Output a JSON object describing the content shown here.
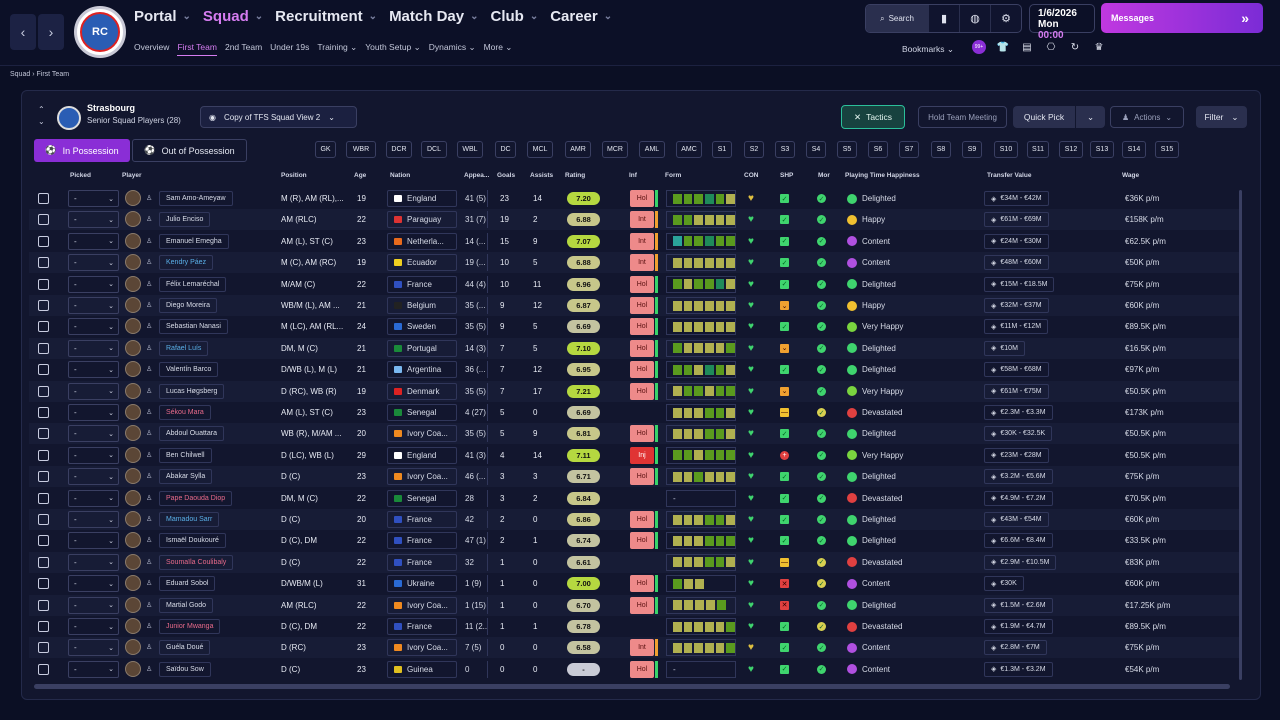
{
  "nav": {
    "items": [
      "Portal",
      "Squad",
      "Recruitment",
      "Match Day",
      "Club",
      "Career"
    ],
    "active": "Squad",
    "sub": [
      "Overview",
      "First Team",
      "2nd Team",
      "Under 19s",
      "Training",
      "Youth Setup",
      "Dynamics",
      "More"
    ],
    "sub_active": "First Team",
    "search_label": "Search",
    "date": "1/6/2026",
    "day": "Mon",
    "time": "00:00",
    "messages_label": "Messages",
    "bookmarks_label": "Bookmarks",
    "badge_count": "99+"
  },
  "breadcrumb": [
    "Squad",
    "First Team"
  ],
  "club": {
    "name": "Strasbourg",
    "subtitle": "Senior Squad Players (28)"
  },
  "toolbar": {
    "view": "Copy of TFS Squad View 2",
    "tactics": "Tactics",
    "hold_meeting": "Hold Team Meeting",
    "quick_pick": "Quick Pick",
    "actions": "Actions",
    "filter": "Filter",
    "in_possession": "In Possession",
    "out_possession": "Out of Possession"
  },
  "positions": [
    "GK",
    "WBR",
    "DCR",
    "DCL",
    "WBL",
    "DC",
    "MCL",
    "AMR",
    "MCR",
    "AML",
    "AMC",
    "S1",
    "S2",
    "S3",
    "S4",
    "S5",
    "S6",
    "S7",
    "S8",
    "S9",
    "S10",
    "S11",
    "S12",
    "S13",
    "S14",
    "S15"
  ],
  "columns": [
    "Picked",
    "Player",
    "Position",
    "Age",
    "Nation",
    "Appea...",
    "Goals",
    "Assists",
    "Rating",
    "Inf",
    "Form",
    "CON",
    "SHP",
    "Mor",
    "Playing Time Happiness",
    "Transfer Value",
    "Wage"
  ],
  "colors": {
    "accent": "#d57cf0",
    "brand": "#8a2ed6",
    "tactics": "#2bbf9a"
  },
  "players": [
    {
      "name": "Sam Amo-Ameyaw",
      "pos": "M (R), AM (RL),...",
      "age": "19",
      "nation": "England",
      "apps": "41 (5)",
      "goals": "23",
      "assists": "14",
      "rating": "7.20",
      "inf": "Hol",
      "form": "gggdgy",
      "shp": "g",
      "mor": "g",
      "happy": "Delighted",
      "tv": "€34M - €42M",
      "wage": "€36K p/m",
      "hl": ""
    },
    {
      "name": "Julio Enciso",
      "pos": "AM (RLC)",
      "age": "22",
      "nation": "Paraguay",
      "apps": "31 (7)",
      "goals": "19",
      "assists": "2",
      "rating": "6.88",
      "inf": "Int",
      "form": "ggyyyy",
      "shp": "g",
      "mor": "g",
      "happy": "Happy",
      "tv": "€61M - €69M",
      "wage": "€158K p/m",
      "hl": ""
    },
    {
      "name": "Emanuel Emegha",
      "pos": "AM (L), ST (C)",
      "age": "23",
      "nation": "Netherla...",
      "apps": "14 (...",
      "goals": "15",
      "assists": "9",
      "rating": "7.07",
      "inf": "Int",
      "form": "tggdgg",
      "shp": "g",
      "mor": "g",
      "happy": "Content",
      "tv": "€24M - €30M",
      "wage": "€62.5K p/m",
      "hl": ""
    },
    {
      "name": "Kendry Páez",
      "pos": "M (C), AM (RC)",
      "age": "19",
      "nation": "Ecuador",
      "apps": "19 (...",
      "goals": "10",
      "assists": "5",
      "rating": "6.88",
      "inf": "Int",
      "form": "yyyyyy",
      "shp": "g",
      "mor": "g",
      "happy": "Content",
      "tv": "€48M - €60M",
      "wage": "€50K p/m",
      "hl": "blue"
    },
    {
      "name": "Félix Lemaréchal",
      "pos": "M/AM (C)",
      "age": "22",
      "nation": "France",
      "apps": "44 (4)",
      "goals": "10",
      "assists": "11",
      "rating": "6.96",
      "inf": "Hol",
      "form": "gyggdy",
      "shp": "g",
      "mor": "g",
      "happy": "Delighted",
      "tv": "€15M - €18.5M",
      "wage": "€75K p/m",
      "hl": ""
    },
    {
      "name": "Diego Moreira",
      "pos": "WB/M (L), AM ...",
      "age": "21",
      "nation": "Belgium",
      "apps": "35 (...",
      "goals": "9",
      "assists": "12",
      "rating": "6.87",
      "inf": "Hol",
      "form": "yyyyyy",
      "shp": "o",
      "mor": "g",
      "happy": "Happy",
      "tv": "€32M - €37M",
      "wage": "€60K p/m",
      "hl": ""
    },
    {
      "name": "Sebastian Nanasi",
      "pos": "M (LC), AM (RL...",
      "age": "24",
      "nation": "Sweden",
      "apps": "35 (5)",
      "goals": "9",
      "assists": "5",
      "rating": "6.69",
      "inf": "Hol",
      "form": "yyyyyy",
      "shp": "g",
      "mor": "g",
      "happy": "Very Happy",
      "tv": "€11M - €12M",
      "wage": "€89.5K p/m",
      "hl": ""
    },
    {
      "name": "Rafael Luís",
      "pos": "DM, M (C)",
      "age": "21",
      "nation": "Portugal",
      "apps": "14 (3)",
      "goals": "7",
      "assists": "5",
      "rating": "7.10",
      "inf": "Hol",
      "form": "gyyyyg",
      "shp": "o",
      "mor": "g",
      "happy": "Delighted",
      "tv": "€10M",
      "wage": "€16.5K p/m",
      "hl": "blue"
    },
    {
      "name": "Valentín Barco",
      "pos": "D/WB (L), M (L)",
      "age": "21",
      "nation": "Argentina",
      "apps": "36 (...",
      "goals": "7",
      "assists": "12",
      "rating": "6.95",
      "inf": "Hol",
      "form": "ggydgy",
      "shp": "g",
      "mor": "g",
      "happy": "Delighted",
      "tv": "€58M - €68M",
      "wage": "€97K p/m",
      "hl": ""
    },
    {
      "name": "Lucas Høgsberg",
      "pos": "D (RC), WB (R)",
      "age": "19",
      "nation": "Denmark",
      "apps": "35 (5)",
      "goals": "7",
      "assists": "17",
      "rating": "7.21",
      "inf": "Hol",
      "form": "yggygg",
      "shp": "o",
      "mor": "g",
      "happy": "Very Happy",
      "tv": "€61M - €75M",
      "wage": "€50.5K p/m",
      "hl": ""
    },
    {
      "name": "Sékou Mara",
      "pos": "AM (L), ST (C)",
      "age": "23",
      "nation": "Senegal",
      "apps": "4 (27)",
      "goals": "5",
      "assists": "0",
      "rating": "6.69",
      "inf": "",
      "form": "yyyggy",
      "shp": "y",
      "mor": "y",
      "happy": "Devastated",
      "tv": "€2.3M - €3.3M",
      "wage": "€173K p/m",
      "hl": "red"
    },
    {
      "name": "Abdoul Ouattara",
      "pos": "WB (R), M/AM ...",
      "age": "20",
      "nation": "Ivory Coa...",
      "apps": "35 (5)",
      "goals": "5",
      "assists": "9",
      "rating": "6.81",
      "inf": "Hol",
      "form": "yyyggy",
      "shp": "g",
      "mor": "g",
      "happy": "Delighted",
      "tv": "€30K - €32.5K",
      "wage": "€50.5K p/m",
      "hl": ""
    },
    {
      "name": "Ben Chilwell",
      "pos": "D (LC), WB (L)",
      "age": "29",
      "nation": "England",
      "apps": "41 (3)",
      "goals": "4",
      "assists": "14",
      "rating": "7.11",
      "inf": "Inj",
      "form": "ggyggg",
      "shp": "r",
      "mor": "g",
      "happy": "Very Happy",
      "tv": "€23M - €28M",
      "wage": "€50.5K p/m",
      "hl": ""
    },
    {
      "name": "Abakar Sylla",
      "pos": "D (C)",
      "age": "23",
      "nation": "Ivory Coa...",
      "apps": "46 (...",
      "goals": "3",
      "assists": "3",
      "rating": "6.71",
      "inf": "Hol",
      "form": "yygyyy",
      "shp": "g",
      "mor": "g",
      "happy": "Delighted",
      "tv": "€3.2M - €5.6M",
      "wage": "€75K p/m",
      "hl": ""
    },
    {
      "name": "Pape Daouda Diop",
      "pos": "DM, M (C)",
      "age": "22",
      "nation": "Senegal",
      "apps": "28",
      "goals": "3",
      "assists": "2",
      "rating": "6.84",
      "inf": "",
      "form": "-",
      "shp": "g",
      "mor": "g",
      "happy": "Devastated",
      "tv": "€4.9M - €7.2M",
      "wage": "€70.5K p/m",
      "hl": "red"
    },
    {
      "name": "Mamadou Sarr",
      "pos": "D (C)",
      "age": "20",
      "nation": "France",
      "apps": "42",
      "goals": "2",
      "assists": "0",
      "rating": "6.86",
      "inf": "Hol",
      "form": "yyyggy",
      "shp": "g",
      "mor": "g",
      "happy": "Delighted",
      "tv": "€43M - €54M",
      "wage": "€60K p/m",
      "hl": "blue"
    },
    {
      "name": "Ismaël Doukouré",
      "pos": "D (C), DM",
      "age": "22",
      "nation": "France",
      "apps": "47 (1)",
      "goals": "2",
      "assists": "1",
      "rating": "6.74",
      "inf": "Hol",
      "form": "yyyggg",
      "shp": "g",
      "mor": "g",
      "happy": "Delighted",
      "tv": "€6.6M - €8.4M",
      "wage": "€33.5K p/m",
      "hl": ""
    },
    {
      "name": "Soumaïla Coulibaly",
      "pos": "D (C)",
      "age": "22",
      "nation": "France",
      "apps": "32",
      "goals": "1",
      "assists": "0",
      "rating": "6.61",
      "inf": "",
      "form": "yyyggy",
      "shp": "y",
      "mor": "y",
      "happy": "Devastated",
      "tv": "€2.9M - €10.5M",
      "wage": "€83K p/m",
      "hl": "red"
    },
    {
      "name": "Eduard Sobol",
      "pos": "D/WB/M (L)",
      "age": "31",
      "nation": "Ukraine",
      "apps": "1 (9)",
      "goals": "1",
      "assists": "0",
      "rating": "7.00",
      "inf": "Hol",
      "form": "gyy",
      "shp": "r",
      "mor": "y",
      "happy": "Content",
      "tv": "€30K",
      "wage": "€60K p/m",
      "hl": ""
    },
    {
      "name": "Martial Godo",
      "pos": "AM (RLC)",
      "age": "22",
      "nation": "Ivory Coa...",
      "apps": "1 (15)",
      "goals": "1",
      "assists": "0",
      "rating": "6.70",
      "inf": "Hol",
      "form": "yyyyg",
      "shp": "r",
      "mor": "g",
      "happy": "Delighted",
      "tv": "€1.5M - €2.6M",
      "wage": "€17.25K p/m",
      "hl": ""
    },
    {
      "name": "Junior Mwanga",
      "pos": "D (C), DM",
      "age": "22",
      "nation": "France",
      "apps": "11 (2...",
      "goals": "1",
      "assists": "1",
      "rating": "6.78",
      "inf": "",
      "form": "yyyyyg",
      "shp": "g",
      "mor": "y",
      "happy": "Devastated",
      "tv": "€1.9M - €4.7M",
      "wage": "€89.5K p/m",
      "hl": "red"
    },
    {
      "name": "Guéla Doué",
      "pos": "D (RC)",
      "age": "23",
      "nation": "Ivory Coa...",
      "apps": "7 (5)",
      "goals": "0",
      "assists": "0",
      "rating": "6.58",
      "inf": "Int",
      "form": "yyyyyg",
      "shp": "g",
      "mor": "g",
      "happy": "Content",
      "tv": "€2.8M - €7M",
      "wage": "€75K p/m",
      "hl": ""
    },
    {
      "name": "Saïdou Sow",
      "pos": "D (C)",
      "age": "23",
      "nation": "Guinea",
      "apps": "0",
      "goals": "0",
      "assists": "0",
      "rating": "-",
      "inf": "Hol",
      "form": "-",
      "shp": "g",
      "mor": "g",
      "happy": "Content",
      "tv": "€1.3M - €3.2M",
      "wage": "€54K p/m",
      "hl": ""
    }
  ]
}
